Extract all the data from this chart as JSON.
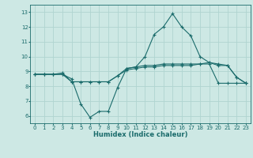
{
  "title": "",
  "xlabel": "Humidex (Indice chaleur)",
  "ylabel": "",
  "background_color": "#cde8e4",
  "grid_color": "#b0d4d0",
  "line_color": "#1a6b6b",
  "xlim": [
    -0.5,
    23.5
  ],
  "ylim": [
    5.5,
    13.5
  ],
  "yticks": [
    6,
    7,
    8,
    9,
    10,
    11,
    12,
    13
  ],
  "xticks": [
    0,
    1,
    2,
    3,
    4,
    5,
    6,
    7,
    8,
    9,
    10,
    11,
    12,
    13,
    14,
    15,
    16,
    17,
    18,
    19,
    20,
    21,
    22,
    23
  ],
  "line1_x": [
    0,
    1,
    2,
    3,
    4,
    5,
    6,
    7,
    8,
    9,
    10,
    11,
    12,
    13,
    14,
    15,
    16,
    17,
    18,
    19,
    20,
    21,
    22,
    23
  ],
  "line1_y": [
    8.8,
    8.8,
    8.8,
    8.8,
    8.5,
    6.8,
    5.9,
    6.3,
    6.3,
    7.9,
    9.2,
    9.3,
    10.0,
    11.5,
    12.0,
    12.9,
    12.0,
    11.4,
    10.0,
    9.6,
    9.5,
    9.4,
    8.6,
    8.2
  ],
  "line2_x": [
    0,
    1,
    2,
    3,
    4,
    5,
    6,
    7,
    8,
    9,
    10,
    11,
    12,
    13,
    14,
    15,
    16,
    17,
    18,
    19,
    20,
    21,
    22,
    23
  ],
  "line2_y": [
    8.8,
    8.8,
    8.8,
    8.9,
    8.3,
    8.3,
    8.3,
    8.3,
    8.3,
    8.7,
    9.2,
    9.3,
    9.4,
    9.4,
    9.5,
    9.5,
    9.5,
    9.5,
    9.5,
    9.5,
    8.2,
    8.2,
    8.2,
    8.2
  ],
  "line3_x": [
    0,
    1,
    2,
    3,
    4,
    5,
    6,
    7,
    8,
    9,
    10,
    11,
    12,
    13,
    14,
    15,
    16,
    17,
    18,
    19,
    20,
    21,
    22,
    23
  ],
  "line3_y": [
    8.8,
    8.8,
    8.8,
    8.8,
    8.3,
    8.3,
    8.3,
    8.3,
    8.3,
    8.7,
    9.1,
    9.2,
    9.3,
    9.3,
    9.4,
    9.4,
    9.4,
    9.4,
    9.5,
    9.6,
    9.4,
    9.4,
    8.6,
    8.2
  ],
  "tick_fontsize": 5.0,
  "xlabel_fontsize": 6.0
}
